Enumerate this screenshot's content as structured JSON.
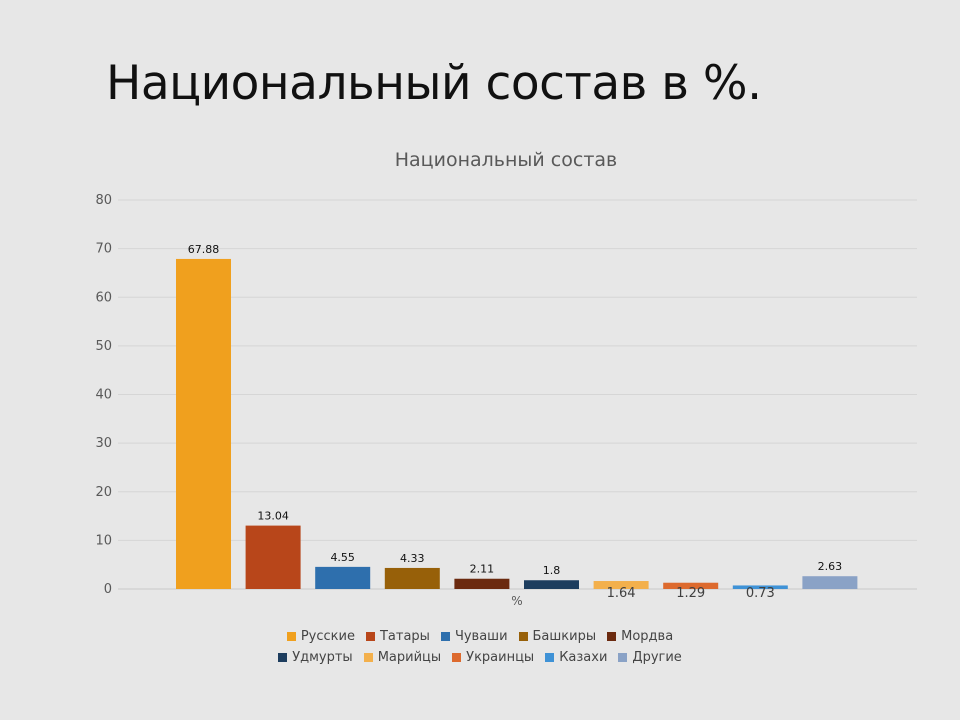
{
  "slide": {
    "title": "Национальный состав в %."
  },
  "chart_data": {
    "type": "bar",
    "title": "Национальный состав",
    "xlabel": "%",
    "ylabel": "",
    "ylim": [
      0,
      80
    ],
    "yticks": [
      0,
      10,
      20,
      30,
      40,
      50,
      60,
      70,
      80
    ],
    "grid": true,
    "legend_position": "bottom",
    "series": [
      {
        "name": "Русские",
        "value": 67.88,
        "label": "67.88",
        "color": "#f0a01e"
      },
      {
        "name": "Татары",
        "value": 13.04,
        "label": "13.04",
        "color": "#b8461a"
      },
      {
        "name": "Чуваши",
        "value": 4.55,
        "label": "4.55",
        "color": "#2e6fad"
      },
      {
        "name": "Башкиры",
        "value": 4.33,
        "label": "4.33",
        "color": "#976009"
      },
      {
        "name": "Мордва",
        "value": 2.11,
        "label": "2.11",
        "color": "#6b2a0f"
      },
      {
        "name": "Удмурты",
        "value": 1.8,
        "label": "1.8",
        "color": "#1d3d5e"
      },
      {
        "name": "Марийцы",
        "value": 1.64,
        "label": "1.64",
        "color": "#f3b04c"
      },
      {
        "name": "Украинцы",
        "value": 1.29,
        "label": "1.29",
        "color": "#dd6a2e"
      },
      {
        "name": "Казахи",
        "value": 0.73,
        "label": "0.73",
        "color": "#3f92d6"
      },
      {
        "name": "Другие",
        "value": 2.63,
        "label": "2.63",
        "color": "#8aa2c6"
      }
    ]
  }
}
